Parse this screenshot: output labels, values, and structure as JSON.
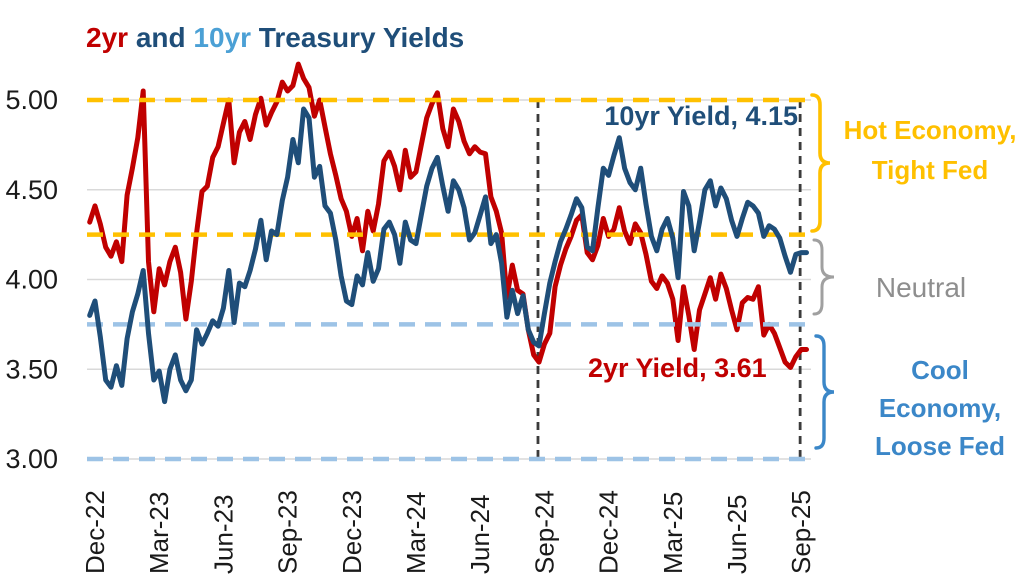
{
  "title": {
    "full": "2yr and 10yr Treasury Yields",
    "parts": [
      {
        "text": "2yr",
        "color": "#C00000"
      },
      {
        "text": " and ",
        "color": "#1F4E79"
      },
      {
        "text": "10yr",
        "color": "#4BA0D5"
      },
      {
        "text": " Treasury Yields",
        "color": "#1F4E79"
      }
    ]
  },
  "annotations": {
    "yield_10yr": "10yr Yield, 4.15",
    "yield_2yr": "2yr Yield, 3.61"
  },
  "zone_labels": {
    "hot": {
      "line1": "Hot Economy,",
      "line2": "Tight Fed",
      "color": "#FFC000",
      "range": [
        5.0,
        4.25
      ]
    },
    "neutral": {
      "line1": "Neutral",
      "color": "#8E8E8E",
      "range": [
        4.25,
        3.75
      ]
    },
    "cool": {
      "line1": "Cool",
      "line2": "Economy,",
      "line3": "Loose Fed",
      "color": "#3B87C8",
      "range": [
        3.75,
        3.0
      ]
    }
  },
  "colors": {
    "red": "#C00000",
    "navy": "#1F4E79",
    "gold": "#FFC000",
    "light_blue_dash": "#9DC3E6",
    "grid_gray": "#D9D9D9",
    "vline_gray": "#3B3B3B",
    "brace_gray": "#A0A0A0",
    "cool_blue": "#3B87C8",
    "axis_text": "#1A1A1A"
  },
  "chart_data": {
    "type": "line",
    "title": "2yr and 10yr Treasury Yields",
    "xlabel": "",
    "ylabel": "",
    "ylim": [
      3.0,
      5.0
    ],
    "y_tick_labels": [
      "5.00",
      "4.50",
      "4.00",
      "3.50",
      "3.00"
    ],
    "y_tick_values": [
      5.0,
      4.5,
      4.0,
      3.5,
      3.0
    ],
    "gridlines_y": [
      5.0,
      4.5,
      4.0,
      3.5,
      3.0
    ],
    "x_tick_labels": [
      "Dec-22",
      "Mar-23",
      "Jun-23",
      "Sep-23",
      "Dec-23",
      "Mar-24",
      "Jun-24",
      "Sep-24",
      "Dec-24",
      "Mar-25",
      "Jun-25",
      "Sep-25"
    ],
    "x_tick_month_index": [
      0,
      3,
      6,
      9,
      12,
      15,
      18,
      21,
      24,
      27,
      30,
      33
    ],
    "x_start_month": -0.25,
    "x_step_month": 0.25,
    "legend_position": "none",
    "reference_lines_horizontal": [
      {
        "y": 5.0,
        "color": "#FFC000",
        "style": "dashed"
      },
      {
        "y": 4.25,
        "color": "#FFC000",
        "style": "dashed"
      },
      {
        "y": 3.75,
        "color": "#9DC3E6",
        "style": "dashed"
      },
      {
        "y": 3.0,
        "color": "#9DC3E6",
        "style": "dashed"
      }
    ],
    "reference_lines_vertical": [
      {
        "near_label": "Sep-24",
        "month_index": 20.7,
        "color": "#3B3B3B",
        "style": "dashed"
      },
      {
        "near_label": "Sep-25",
        "month_index": 32.95,
        "color": "#3B3B3B",
        "style": "dashed"
      }
    ],
    "series": [
      {
        "name": "2yr Yield",
        "last_value": 3.61,
        "color": "#C00000",
        "values": [
          4.32,
          4.41,
          4.31,
          4.18,
          4.13,
          4.21,
          4.1,
          4.47,
          4.62,
          4.79,
          5.05,
          4.1,
          3.82,
          4.06,
          3.97,
          4.1,
          4.18,
          4.04,
          3.78,
          3.99,
          4.26,
          4.49,
          4.52,
          4.68,
          4.74,
          4.87,
          5.0,
          4.65,
          4.82,
          4.88,
          4.78,
          4.92,
          5.01,
          4.86,
          4.93,
          4.99,
          5.1,
          5.05,
          5.08,
          5.2,
          5.12,
          5.07,
          4.91,
          5.0,
          4.85,
          4.7,
          4.58,
          4.45,
          4.38,
          4.24,
          4.34,
          4.16,
          4.38,
          4.27,
          4.42,
          4.66,
          4.71,
          4.63,
          4.5,
          4.72,
          4.57,
          4.6,
          4.75,
          4.9,
          4.98,
          5.04,
          4.84,
          4.74,
          4.95,
          4.88,
          4.77,
          4.7,
          4.74,
          4.71,
          4.7,
          4.46,
          4.38,
          4.26,
          3.9,
          4.08,
          3.94,
          3.92,
          3.72,
          3.58,
          3.54,
          3.64,
          3.7,
          3.96,
          4.08,
          4.17,
          4.24,
          4.33,
          4.36,
          4.15,
          4.11,
          4.19,
          4.34,
          4.24,
          4.28,
          4.4,
          4.27,
          4.2,
          4.31,
          4.26,
          4.14,
          3.99,
          3.95,
          4.02,
          3.98,
          3.89,
          3.66,
          3.96,
          3.8,
          3.61,
          3.83,
          3.92,
          4.01,
          3.89,
          4.03,
          3.95,
          3.83,
          3.72,
          3.87,
          3.9,
          3.89,
          3.96,
          3.69,
          3.75,
          3.7,
          3.62,
          3.54,
          3.51,
          3.57,
          3.61,
          3.61
        ]
      },
      {
        "name": "10yr Yield",
        "last_value": 4.15,
        "color": "#1F4E79",
        "values": [
          3.8,
          3.88,
          3.68,
          3.44,
          3.4,
          3.52,
          3.41,
          3.67,
          3.82,
          3.92,
          4.05,
          3.7,
          3.44,
          3.49,
          3.32,
          3.5,
          3.58,
          3.44,
          3.38,
          3.44,
          3.72,
          3.64,
          3.7,
          3.77,
          3.74,
          3.84,
          4.05,
          3.76,
          3.98,
          3.96,
          4.05,
          4.17,
          4.33,
          4.11,
          4.27,
          4.25,
          4.44,
          4.57,
          4.78,
          4.65,
          4.95,
          4.9,
          4.57,
          4.63,
          4.41,
          4.37,
          4.22,
          4.02,
          3.88,
          3.86,
          4.02,
          3.97,
          4.15,
          3.99,
          4.06,
          4.28,
          4.32,
          4.25,
          4.09,
          4.32,
          4.22,
          4.2,
          4.36,
          4.52,
          4.62,
          4.68,
          4.52,
          4.38,
          4.55,
          4.5,
          4.4,
          4.22,
          4.26,
          4.36,
          4.46,
          4.2,
          4.25,
          4.09,
          3.79,
          3.94,
          3.81,
          3.91,
          3.72,
          3.65,
          3.63,
          3.81,
          3.98,
          4.1,
          4.21,
          4.28,
          4.36,
          4.45,
          4.4,
          4.18,
          4.16,
          4.4,
          4.62,
          4.58,
          4.69,
          4.79,
          4.62,
          4.54,
          4.5,
          4.62,
          4.42,
          4.24,
          4.16,
          4.28,
          4.34,
          4.23,
          4.01,
          4.49,
          4.41,
          4.16,
          4.32,
          4.5,
          4.55,
          4.41,
          4.51,
          4.45,
          4.33,
          4.24,
          4.34,
          4.43,
          4.41,
          4.37,
          4.24,
          4.3,
          4.28,
          4.23,
          4.13,
          4.04,
          4.14,
          4.15,
          4.15
        ]
      }
    ]
  }
}
